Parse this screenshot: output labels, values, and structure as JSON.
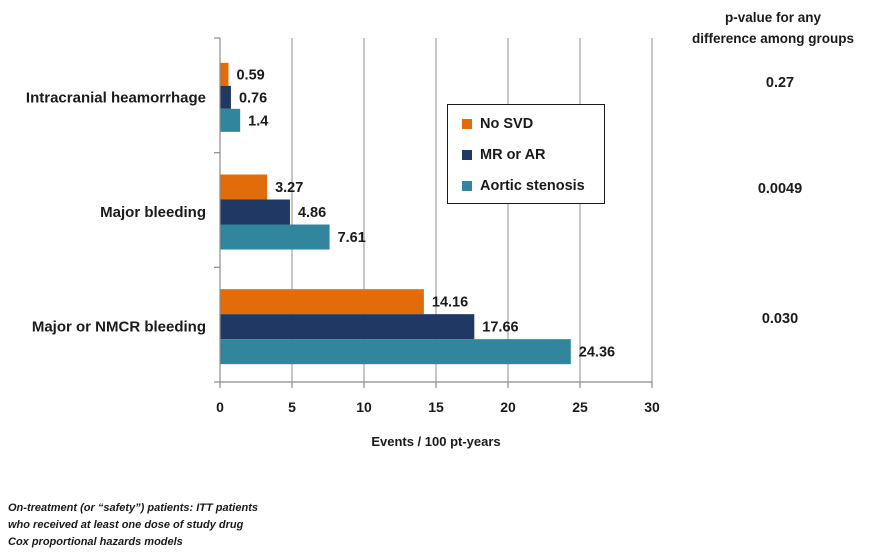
{
  "chart_data": {
    "type": "bar",
    "orientation": "horizontal",
    "categories": [
      "Intracranial heamorrhage",
      "Major bleeding",
      "Major or NMCR bleeding"
    ],
    "series": [
      {
        "name": "No SVD",
        "color": "#e36c0a",
        "values": [
          0.59,
          3.27,
          14.16
        ],
        "labels": [
          "0.59",
          "3.27",
          "14.16"
        ]
      },
      {
        "name": "MR or AR",
        "color": "#1f3864",
        "values": [
          0.76,
          4.86,
          17.66
        ],
        "labels": [
          "0.76",
          "4.86",
          "17.66"
        ]
      },
      {
        "name": "Aortic stenosis",
        "color": "#31859c",
        "values": [
          1.4,
          7.61,
          24.36
        ],
        "labels": [
          "1.4",
          "7.61",
          "24.36"
        ]
      }
    ],
    "xlabel": "Events / 100 pt-years",
    "xlim": [
      0,
      30
    ],
    "xticks": [
      "0",
      "5",
      "10",
      "15",
      "20",
      "25",
      "30"
    ],
    "grid": "vertical",
    "legend": "right of plot, boxed"
  },
  "pvalues": {
    "header_line1": "p-value for any",
    "header_line2": "difference among groups",
    "values": [
      "0.27",
      "0.0049",
      "0.030"
    ]
  },
  "footnote": {
    "line1": "On-treatment (or “safety”) patients: ITT patients",
    "line2": "who received at least one dose of study drug",
    "line3": "Cox proportional hazards models"
  }
}
